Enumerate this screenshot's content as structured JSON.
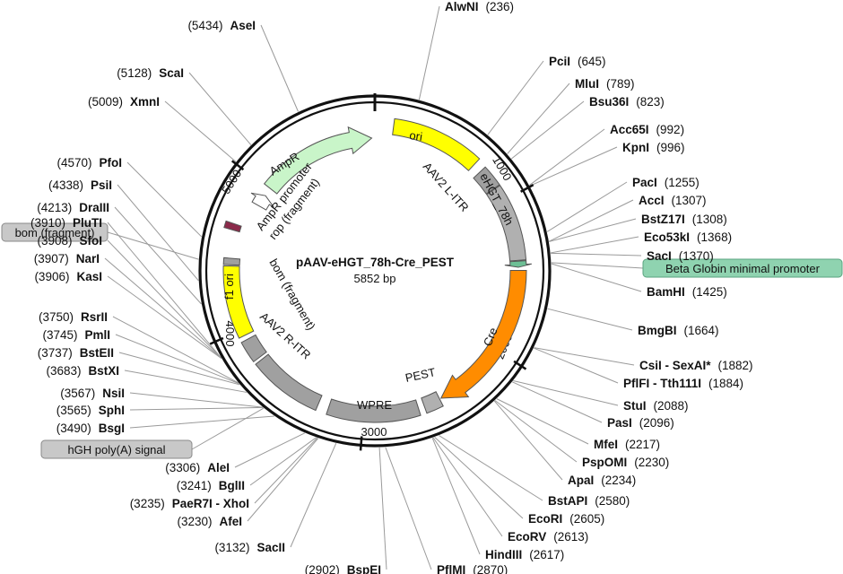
{
  "plasmid": {
    "name": "pAAV-eHGT_78h-Cre_PEST",
    "size_label": "5852 bp",
    "length": 5852
  },
  "ticks": [
    {
      "label": "1000",
      "value": 1000
    },
    {
      "label": "2000",
      "value": 2000
    },
    {
      "label": "3000",
      "value": 3000
    },
    {
      "label": "4000",
      "value": 4000
    },
    {
      "label": "5000",
      "value": 5000
    }
  ],
  "features": [
    {
      "name": "ori",
      "start": 120,
      "end": 700,
      "color": "#ffff00",
      "type": "arc"
    },
    {
      "name": "AAV2 L-ITR",
      "start": 760,
      "end": 900,
      "color": "#a0a0a0",
      "type": "arc"
    },
    {
      "name": "eHGT_78h",
      "start": 905,
      "end": 1395,
      "color": "#b0b0b0",
      "type": "arc"
    },
    {
      "name": "Beta Globin minimal promoter",
      "start": 1400,
      "end": 1440,
      "color": "#6dbf95",
      "type": "arrow"
    },
    {
      "name": "Cre",
      "start": 1460,
      "end": 2480,
      "color": "#ff8c00",
      "type": "arrow"
    },
    {
      "name": "PEST",
      "start": 2490,
      "end": 2600,
      "color": "#b0b0b0",
      "type": "arc"
    },
    {
      "name": "WPRE",
      "start": 2640,
      "end": 3230,
      "color": "#a0a0a0",
      "type": "arc"
    },
    {
      "name": "hGH poly(A) signal",
      "start": 3300,
      "end": 3770,
      "color": "#a0a0a0",
      "type": "arc"
    },
    {
      "name": "AAV2 R-ITR",
      "start": 3790,
      "end": 3930,
      "color": "#a0a0a0",
      "type": "arc"
    },
    {
      "name": "f1 ori",
      "start": 3960,
      "end": 4420,
      "color": "#ffff00",
      "type": "arc"
    },
    {
      "name": "bom (fragment)",
      "start": 4428,
      "end": 4470,
      "color": "#a0a0a0",
      "type": "arc"
    },
    {
      "name": "rop (fragment)",
      "start": 4650,
      "end": 4690,
      "color": "#8b2a4a",
      "type": "arc"
    },
    {
      "name": "AmpR promoter",
      "start": 4865,
      "end": 4950,
      "color": "#ffffff",
      "type": "arrow"
    },
    {
      "name": "AmpR",
      "start": 5010,
      "end": 5830,
      "color": "#c9f5c9",
      "type": "arrow"
    }
  ],
  "feature_labels": {
    "ori": "ori",
    "l_itr": "AAV2 L-ITR",
    "ehgt": "eHGT_78h",
    "cre": "Cre",
    "pest": "PEST",
    "wpre": "WPRE",
    "r_itr": "AAV2 R-ITR",
    "bom_inner": "bom (fragment)",
    "f1ori": "f1 ori",
    "ampr": "AmpR",
    "ampr_promoter": "AmpR promoter",
    "rop": "rop (fragment)"
  },
  "feature_boxes": {
    "beta_globin": "Beta Globin minimal promoter",
    "bom": "bom (fragment)",
    "hgh": "hGH poly(A) signal"
  },
  "sites": [
    {
      "key": "alwni",
      "text": "AlwNI",
      "pos": "(236)",
      "loc": 236
    },
    {
      "key": "pcii",
      "text": "PciI",
      "pos": "(645)",
      "loc": 645
    },
    {
      "key": "mlui",
      "text": "MluI",
      "pos": "(789)",
      "loc": 789
    },
    {
      "key": "bsu36i",
      "text": "Bsu36I",
      "pos": "(823)",
      "loc": 823
    },
    {
      "key": "acc65i",
      "text": "Acc65I",
      "pos": "(992)",
      "loc": 992
    },
    {
      "key": "kpni",
      "text": "KpnI",
      "pos": "(996)",
      "loc": 996
    },
    {
      "key": "paci",
      "text": "PacI",
      "pos": "(1255)",
      "loc": 1255
    },
    {
      "key": "acci",
      "text": "AccI",
      "pos": "(1307)",
      "loc": 1307
    },
    {
      "key": "bstz17i",
      "text": "BstZ17I",
      "pos": "(1308)",
      "loc": 1308
    },
    {
      "key": "eco53ki",
      "text": "Eco53kI",
      "pos": "(1368)",
      "loc": 1368
    },
    {
      "key": "saci",
      "text": "SacI",
      "pos": "(1370)",
      "loc": 1370
    },
    {
      "key": "bamhi",
      "text": "BamHI",
      "pos": "(1425)",
      "loc": 1425
    },
    {
      "key": "bmgbi",
      "text": "BmgBI",
      "pos": "(1664)",
      "loc": 1664
    },
    {
      "key": "csii",
      "text": "CsiI - SexAI*",
      "pos": "(1882)",
      "loc": 1882
    },
    {
      "key": "pflfi",
      "text": "PflFI - Tth111I",
      "pos": "(1884)",
      "loc": 1884
    },
    {
      "key": "stui",
      "text": "StuI",
      "pos": "(2088)",
      "loc": 2088
    },
    {
      "key": "pasi",
      "text": "PasI",
      "pos": "(2096)",
      "loc": 2096
    },
    {
      "key": "mfei",
      "text": "MfeI",
      "pos": "(2217)",
      "loc": 2217
    },
    {
      "key": "pspomi",
      "text": "PspOMI",
      "pos": "(2230)",
      "loc": 2230
    },
    {
      "key": "apai",
      "text": "ApaI",
      "pos": "(2234)",
      "loc": 2234
    },
    {
      "key": "bstapi",
      "text": "BstAPI",
      "pos": "(2580)",
      "loc": 2580
    },
    {
      "key": "ecori",
      "text": "EcoRI",
      "pos": "(2605)",
      "loc": 2605
    },
    {
      "key": "ecorv",
      "text": "EcoRV",
      "pos": "(2613)",
      "loc": 2613
    },
    {
      "key": "hindiii",
      "text": "HindIII",
      "pos": "(2617)",
      "loc": 2617
    },
    {
      "key": "pflmi",
      "text": "PflMI",
      "pos": "(2870)",
      "loc": 2870
    },
    {
      "key": "bspei",
      "text": "BspEI",
      "pos": "(2902)",
      "loc": 2902
    },
    {
      "key": "sacii",
      "text": "SacII",
      "pos": "(3132)",
      "loc": 3132
    },
    {
      "key": "afei",
      "text": "AfeI",
      "pos": "(3230)",
      "loc": 3230
    },
    {
      "key": "paer7i",
      "text": "PaeR7I - XhoI",
      "pos": "(3235)",
      "loc": 3235
    },
    {
      "key": "bglii",
      "text": "BglII",
      "pos": "(3241)",
      "loc": 3241
    },
    {
      "key": "alei",
      "text": "AleI",
      "pos": "(3306)",
      "loc": 3306
    },
    {
      "key": "bsgi",
      "text": "BsgI",
      "pos": "(3490)",
      "loc": 3490
    },
    {
      "key": "sphi",
      "text": "SphI",
      "pos": "(3565)",
      "loc": 3565
    },
    {
      "key": "nsii",
      "text": "NsiI",
      "pos": "(3567)",
      "loc": 3567
    },
    {
      "key": "bstxi",
      "text": "BstXI",
      "pos": "(3683)",
      "loc": 3683
    },
    {
      "key": "bsteii",
      "text": "BstEII",
      "pos": "(3737)",
      "loc": 3737
    },
    {
      "key": "pmli",
      "text": "PmlI",
      "pos": "(3745)",
      "loc": 3745
    },
    {
      "key": "rsrii",
      "text": "RsrII",
      "pos": "(3750)",
      "loc": 3750
    },
    {
      "key": "kasi",
      "text": "KasI",
      "pos": "(3906)",
      "loc": 3906
    },
    {
      "key": "nari",
      "text": "NarI",
      "pos": "(3907)",
      "loc": 3907
    },
    {
      "key": "sfoi",
      "text": "SfoI",
      "pos": "(3908)",
      "loc": 3908
    },
    {
      "key": "pluti",
      "text": "PluTI",
      "pos": "(3910)",
      "loc": 3910
    },
    {
      "key": "draiii",
      "text": "DraIII",
      "pos": "(4213)",
      "loc": 4213
    },
    {
      "key": "psii",
      "text": "PsiI",
      "pos": "(4338)",
      "loc": 4338
    },
    {
      "key": "pfoi",
      "text": "PfoI",
      "pos": "(4570)",
      "loc": 4570
    },
    {
      "key": "xmni",
      "text": "XmnI",
      "pos": "(5009)",
      "loc": 5009
    },
    {
      "key": "scai",
      "text": "ScaI",
      "pos": "(5128)",
      "loc": 5128
    },
    {
      "key": "asei",
      "text": "AseI",
      "pos": "(5434)",
      "loc": 5434
    }
  ]
}
